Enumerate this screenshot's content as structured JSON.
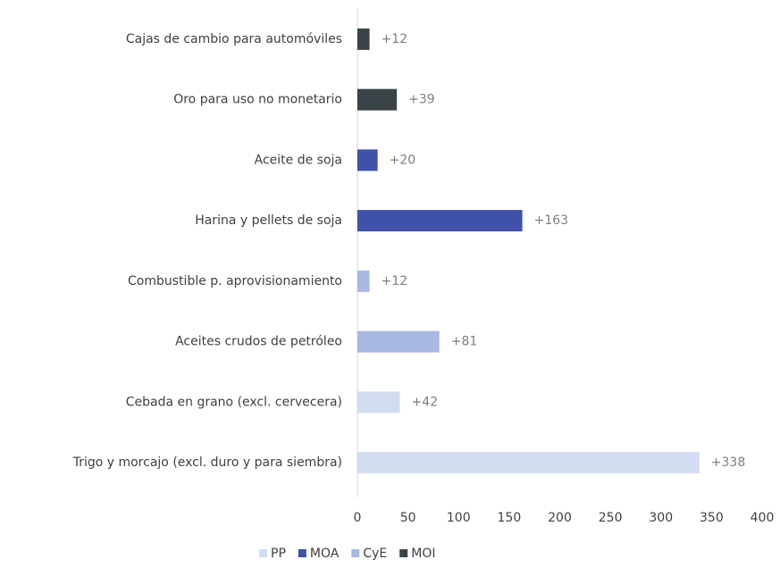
{
  "chart_data": {
    "type": "bar",
    "orientation": "horizontal",
    "categories": [
      "Cajas de cambio para automóviles",
      "Oro para uso no monetario",
      "Aceite de soja",
      "Harina y pellets de soja",
      "Combustible p. aprovisionamiento",
      "Aceites crudos de petróleo",
      "Cebada en grano (excl. cervecera)",
      "Trigo y morcajo (excl. duro y para siembra)"
    ],
    "series": [
      {
        "name": "PP",
        "color": "#d3ddf1",
        "values": [
          null,
          null,
          null,
          null,
          null,
          null,
          42,
          338
        ],
        "value_labels": [
          null,
          null,
          null,
          null,
          null,
          null,
          "+42",
          "+338"
        ]
      },
      {
        "name": "MOA",
        "color": "#3f51a9",
        "values": [
          null,
          null,
          20,
          163,
          null,
          null,
          null,
          null
        ],
        "value_labels": [
          null,
          null,
          "+20",
          "+163",
          null,
          null,
          null,
          null
        ]
      },
      {
        "name": "CyE",
        "color": "#a9b9e4",
        "values": [
          null,
          null,
          null,
          null,
          12,
          81,
          null,
          null
        ],
        "value_labels": [
          null,
          null,
          null,
          null,
          "+12",
          "+81",
          null,
          null
        ]
      },
      {
        "name": "MOI",
        "color": "#3a4347",
        "values": [
          12,
          39,
          null,
          null,
          null,
          null,
          null,
          null
        ],
        "value_labels": [
          "+12",
          "+39",
          null,
          null,
          null,
          null,
          null,
          null
        ]
      }
    ],
    "xlim": [
      0,
      400
    ],
    "xticks": [
      0,
      50,
      100,
      150,
      200,
      250,
      300,
      350,
      400
    ],
    "legend": "bottom"
  }
}
